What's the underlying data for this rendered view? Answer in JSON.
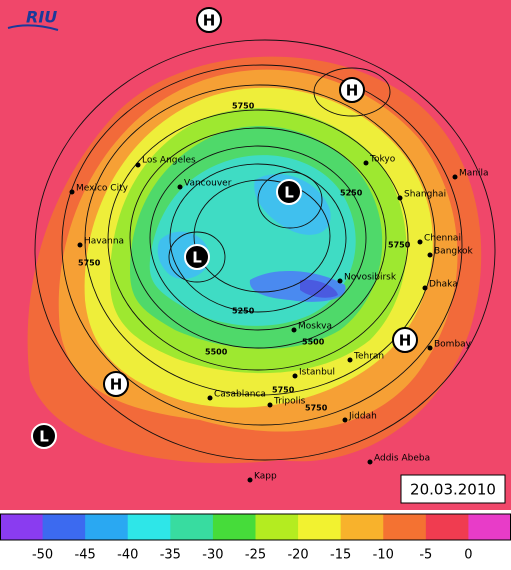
{
  "logo": "RIU",
  "date": "20.03.2010",
  "pressure_centers": [
    "H",
    "H",
    "L",
    "L",
    "H",
    "H",
    "L"
  ],
  "cities": [
    "Los Angeles",
    "Mexico City",
    "Vancouver",
    "Havanna",
    "Tokyo",
    "Shanghai",
    "Manila",
    "Chennai",
    "Bangkok",
    "Novosibirsk",
    "Dhaka",
    "Moskva",
    "Bombay",
    "Tehran",
    "Istanbul",
    "Casablanca",
    "Tripolis",
    "Jiddah",
    "Addis Abeba",
    "Kapp"
  ],
  "contour_labels": [
    "5750",
    "5250",
    "5750",
    "5750",
    "5250",
    "5500",
    "5500",
    "5750",
    "5750"
  ],
  "colorbar": {
    "labels": [
      "-50",
      "-45",
      "-40",
      "-35",
      "-30",
      "-25",
      "-20",
      "-15",
      "-10",
      "-5",
      "0"
    ]
  }
}
